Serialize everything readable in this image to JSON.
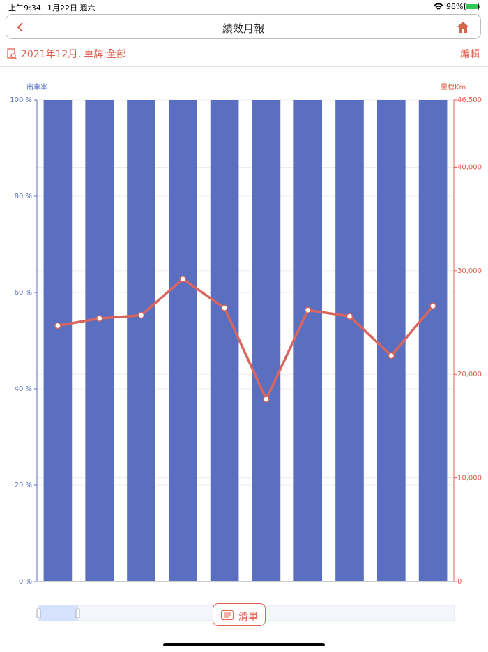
{
  "status_bar": {
    "time": "上午9:34",
    "date": "1月22日 週六",
    "battery": "98%"
  },
  "nav": {
    "title": "績效月報"
  },
  "filter": {
    "text": "2021年12月, 車牌:全部",
    "edit": "編輯"
  },
  "chart_data": {
    "type": "bar",
    "y_label": "出車率",
    "y2_label": "里程Km",
    "categories": [
      null,
      null,
      null,
      null,
      null,
      null,
      null,
      null,
      null,
      null
    ],
    "series": [
      {
        "type": "bar",
        "color": "#5b6fc0",
        "axis": "y",
        "values": [
          100,
          100,
          100,
          100,
          100,
          100,
          100,
          100,
          100,
          100
        ]
      },
      {
        "type": "line",
        "color": "#d9665e",
        "axis": "y2",
        "values": [
          24700,
          25400,
          25700,
          29200,
          26400,
          17600,
          26200,
          25600,
          21800,
          26600
        ]
      }
    ],
    "ylim": [
      0,
      100
    ],
    "yticks": [
      {
        "value": 0,
        "label": "0 %"
      },
      {
        "value": 20,
        "label": "20 %"
      },
      {
        "value": 40,
        "label": "40 %"
      },
      {
        "value": 60,
        "label": "60 %"
      },
      {
        "value": 80,
        "label": "80 %"
      },
      {
        "value": 100,
        "label": "100 %"
      }
    ],
    "y2lim": [
      0,
      46500
    ],
    "y2ticks": [
      0,
      {
        "value": 10000,
        "label": "10,000"
      },
      {
        "value": 20000,
        "label": "20,000"
      },
      {
        "value": 30000,
        "label": "30,000"
      },
      {
        "value": 40000,
        "label": "40,000"
      },
      {
        "value": 46500,
        "label": "46,500"
      }
    ],
    "y_color": "#5b6fc0",
    "y2_color": "#e0604f",
    "grid": true
  },
  "button": {
    "label": "清單"
  }
}
